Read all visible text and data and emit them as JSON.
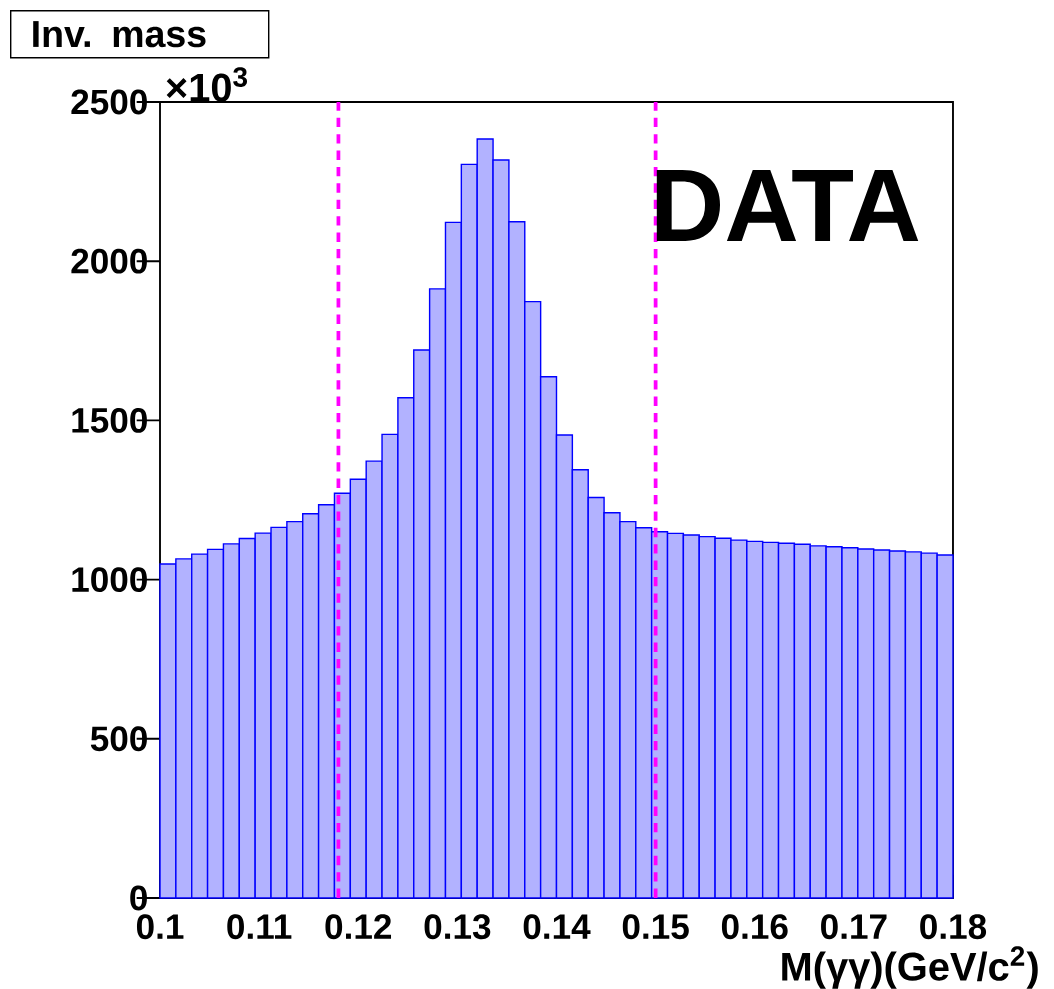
{
  "chart_data": {
    "type": "histogram",
    "title": "Inv. mass",
    "xlabel": "M(γγ)(GeV/c$^{2}$)",
    "annotations": [
      "×10$^{3}$",
      "DATA"
    ],
    "bins": [
      0.1,
      0.1016,
      0.1032,
      0.1048,
      0.1064,
      0.108,
      0.1096,
      0.1112,
      0.1128,
      0.1144,
      0.116,
      0.1176,
      0.1192,
      0.1208,
      0.1224,
      0.124,
      0.1256,
      0.1272,
      0.1288,
      0.1304,
      0.132,
      0.1336,
      0.1352,
      0.1368,
      0.1384,
      0.14,
      0.1416,
      0.1432,
      0.1448,
      0.1464,
      0.148,
      0.1496,
      0.1512,
      0.1528,
      0.1544,
      0.156,
      0.1576,
      0.1592,
      0.1608,
      0.1624,
      0.164,
      0.1656,
      0.1672,
      0.1688,
      0.1704,
      0.172,
      0.1736,
      0.1752,
      0.1768,
      0.1784,
      0.18
    ],
    "values": [
      1049,
      1065,
      1080,
      1095,
      1112,
      1129,
      1146,
      1164,
      1182,
      1207,
      1235,
      1271,
      1315,
      1372,
      1456,
      1571,
      1721,
      1913,
      2122,
      2304,
      2384,
      2318,
      2124,
      1873,
      1637,
      1454,
      1345,
      1258,
      1210,
      1182,
      1163,
      1150,
      1145,
      1140,
      1135,
      1130,
      1124,
      1120,
      1117,
      1114,
      1111,
      1106,
      1103,
      1100,
      1096,
      1093,
      1090,
      1087,
      1083,
      1077
    ],
    "color": "#0000ff",
    "xlim": [
      0.1,
      0.18
    ],
    "ylim": [
      0,
      2500
    ],
    "xticks": [
      0.1,
      0.11,
      0.12,
      0.13,
      0.14,
      0.15,
      0.16,
      0.17,
      0.18
    ],
    "yticks": [
      0,
      500,
      1000,
      1500,
      2000,
      2500
    ],
    "ref_lines": [
      {
        "axis": "x",
        "value": 0.118,
        "color": "#ff00ff",
        "line_style": "dashed"
      },
      {
        "axis": "x",
        "value": 0.15,
        "color": "#ff00ff",
        "line_style": "dashed"
      }
    ],
    "grid": false
  }
}
